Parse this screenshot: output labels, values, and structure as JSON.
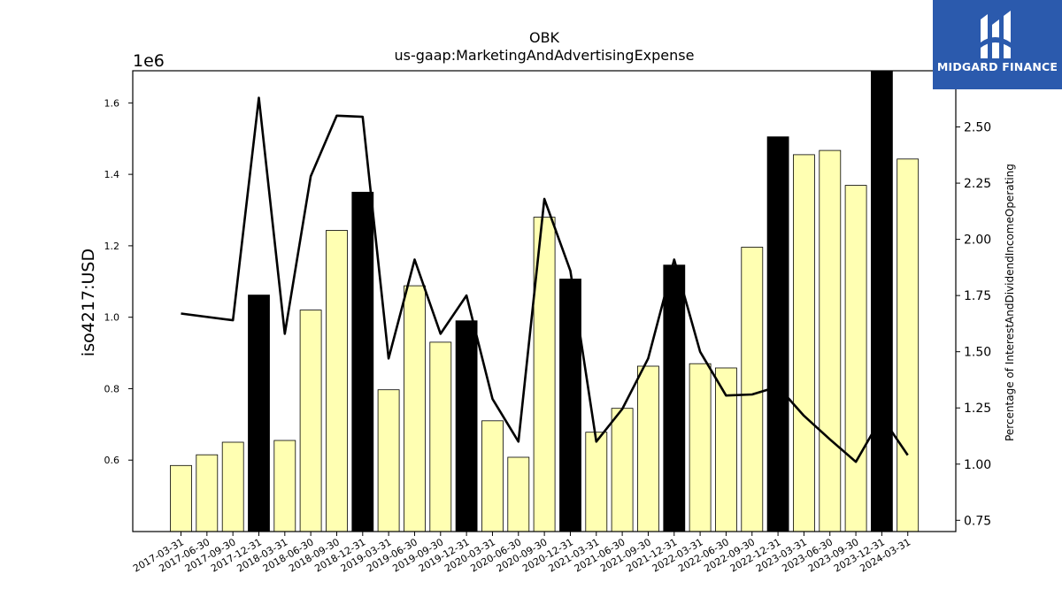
{
  "chart_data": {
    "type": "bar",
    "title": "OBK",
    "subtitle": "us-gaap:MarketingAndAdvertisingExpense",
    "ylabel": "iso4217:USD",
    "y_offset_label": "1e6",
    "y2label": "Percentage of InterestAndDividendIncomeOperating",
    "ylim": [
      0.4,
      1.69
    ],
    "y2lim": [
      0.7,
      2.75
    ],
    "yticks": [
      0.6,
      0.8,
      1.0,
      1.2,
      1.4,
      1.6
    ],
    "y2ticks": [
      0.75,
      1.0,
      1.25,
      1.5,
      1.75,
      2.0,
      2.25,
      2.5
    ],
    "categories": [
      "2017-03-31",
      "2017-06-30",
      "2017-09-30",
      "2017-12-31",
      "2018-03-31",
      "2018-06-30",
      "2018-09-30",
      "2018-12-31",
      "2019-03-31",
      "2019-06-30",
      "2019-09-30",
      "2019-12-31",
      "2020-03-31",
      "2020-06-30",
      "2020-09-30",
      "2020-12-31",
      "2021-03-31",
      "2021-06-30",
      "2021-09-30",
      "2021-12-31",
      "2022-03-31",
      "2022-06-30",
      "2022-09-30",
      "2022-12-31",
      "2023-03-31",
      "2023-06-30",
      "2023-09-30",
      "2023-12-31",
      "2024-03-31"
    ],
    "series": [
      {
        "type": "bar",
        "values": [
          0.585,
          0.615,
          0.65,
          1.062,
          0.655,
          1.02,
          1.243,
          1.35,
          0.797,
          1.088,
          0.93,
          0.99,
          0.71,
          0.608,
          1.28,
          1.107,
          0.678,
          0.745,
          0.863,
          1.146,
          0.87,
          0.858,
          1.196,
          1.505,
          1.455,
          1.467,
          1.369,
          1.69,
          1.443
        ],
        "highlight": [
          false,
          false,
          false,
          true,
          false,
          false,
          false,
          true,
          false,
          false,
          false,
          true,
          false,
          false,
          false,
          true,
          false,
          false,
          false,
          true,
          false,
          false,
          false,
          true,
          false,
          false,
          false,
          true,
          false
        ]
      },
      {
        "type": "line",
        "axis": "right",
        "values": [
          1.67,
          null,
          1.64,
          2.63,
          1.58,
          2.28,
          2.55,
          2.545,
          1.47,
          1.91,
          1.58,
          1.75,
          1.29,
          1.1,
          2.18,
          1.86,
          1.1,
          1.245,
          1.47,
          1.91,
          1.5,
          1.305,
          1.31,
          1.345,
          1.215,
          1.11,
          1.01,
          1.21,
          1.04
        ]
      }
    ],
    "colors": {
      "bar_normal": "#ffffb2",
      "bar_highlight": "#000000",
      "line": "#000000"
    },
    "grid": false
  },
  "logo": {
    "text": "MIDGARD FINANCE",
    "icon": "midgard-logo-icon"
  }
}
